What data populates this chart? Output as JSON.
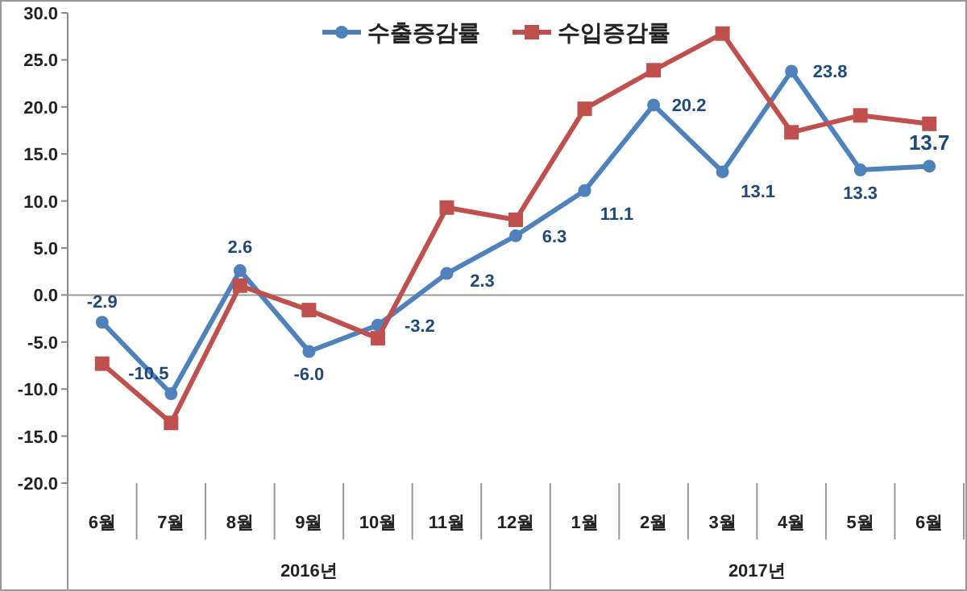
{
  "chart_data": {
    "type": "line",
    "categories": [
      "6월",
      "7월",
      "8월",
      "9월",
      "10월",
      "11월",
      "12월",
      "1월",
      "2월",
      "3월",
      "4월",
      "5월",
      "6월"
    ],
    "series": [
      {
        "name": "수출증감률",
        "color": "#4f81bd",
        "values": [
          -2.9,
          -10.5,
          2.6,
          -6.0,
          -3.2,
          2.3,
          6.3,
          11.1,
          20.2,
          13.1,
          23.8,
          13.3,
          13.7
        ],
        "value_labels": [
          "-2.9",
          "-10.5",
          "2.6",
          "-6.0",
          "-3.2",
          "2.3",
          "6.3",
          "11.1",
          "20.2",
          "13.1",
          "23.8",
          "13.3",
          "13.7"
        ],
        "marker": "circle"
      },
      {
        "name": "수입증감률",
        "color": "#c0504d",
        "values": [
          -7.3,
          -13.6,
          1.0,
          -1.6,
          -4.6,
          9.3,
          8.0,
          19.8,
          23.9,
          27.8,
          17.3,
          19.1,
          18.2
        ],
        "marker": "square"
      }
    ],
    "ylim": [
      -20,
      30
    ],
    "yticks": [
      {
        "value": -20,
        "label": "-20.0"
      },
      {
        "value": -15,
        "label": "-15.0"
      },
      {
        "value": -10,
        "label": "-10.0"
      },
      {
        "value": -5,
        "label": "-5.0"
      },
      {
        "value": 0,
        "label": "0.0"
      },
      {
        "value": 5,
        "label": "5.0"
      },
      {
        "value": 10,
        "label": "10.0"
      },
      {
        "value": 15,
        "label": "15.0"
      },
      {
        "value": 20,
        "label": "20.0"
      },
      {
        "value": 25,
        "label": "25.0"
      },
      {
        "value": 30,
        "label": "30.0"
      }
    ],
    "annotations": [
      "2016년",
      "2017년"
    ],
    "ref_lines": [
      {
        "axis": "y",
        "value": 0,
        "color": "#999999"
      }
    ],
    "legend": "top",
    "grid": false
  }
}
